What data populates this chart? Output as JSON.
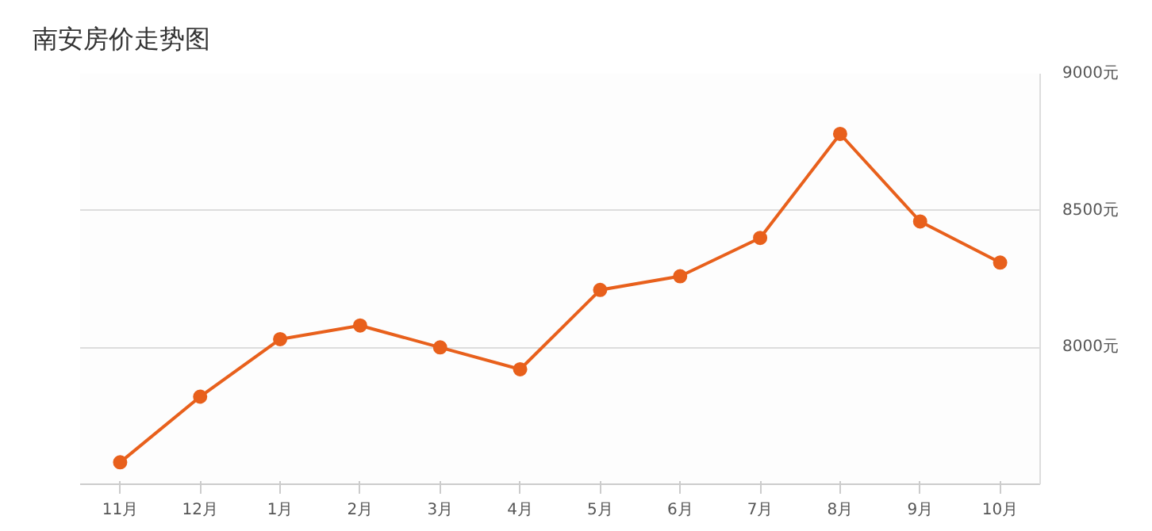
{
  "chart_data": {
    "type": "line",
    "title": "南安房价走势图",
    "categories": [
      "11月",
      "12月",
      "1月",
      "2月",
      "3月",
      "4月",
      "5月",
      "6月",
      "7月",
      "8月",
      "9月",
      "10月"
    ],
    "series": [
      {
        "color": "#e8601c",
        "values": [
          7580,
          7820,
          8030,
          8080,
          8000,
          7920,
          8210,
          8260,
          8400,
          8780,
          8460,
          8310
        ]
      }
    ],
    "ylim": [
      7500,
      9000
    ],
    "yticks": [
      {
        "value": 8000,
        "label": "8000元"
      },
      {
        "value": 8500,
        "label": "8500元"
      },
      {
        "value": 9000,
        "label": "9000元"
      }
    ],
    "grid": "y",
    "marker": "circle",
    "line_style": "solid"
  }
}
